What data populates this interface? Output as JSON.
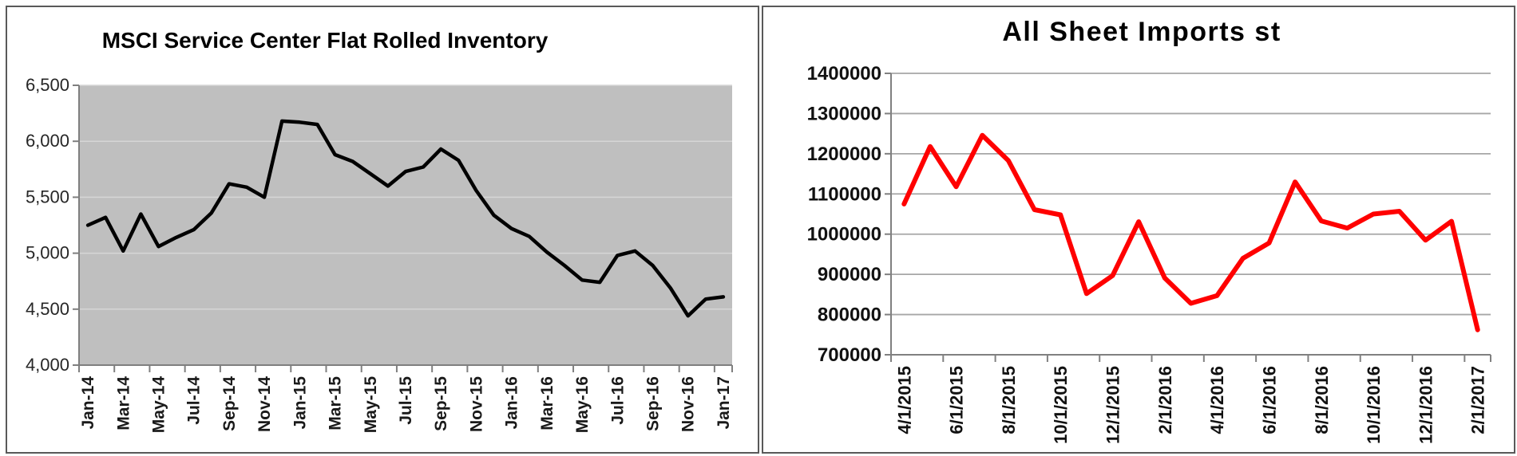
{
  "page": {
    "background": "#ffffff"
  },
  "chart_data": [
    {
      "type": "line",
      "title": "MSCI Service Center Flat Rolled Inventory",
      "legend": "none",
      "grid": "horizontal",
      "xlabel": "",
      "ylabel": "",
      "ylim": [
        4000,
        6500
      ],
      "y_step": 500,
      "y_tick_labels": [
        "6,500",
        "6,000",
        "5,500",
        "5,000",
        "4,500",
        "4,000"
      ],
      "x_tick_labels": [
        "Jan-14",
        "Mar-14",
        "May-14",
        "Jul-14",
        "Sep-14",
        "Nov-14",
        "Jan-15",
        "Mar-15",
        "May-15",
        "Jul-15",
        "Sep-15",
        "Nov-15",
        "Jan-16",
        "Mar-16",
        "May-16",
        "Jul-16",
        "Sep-16",
        "Nov-16",
        "Jan-17"
      ],
      "categories": [
        "Jan-14",
        "Feb-14",
        "Mar-14",
        "Apr-14",
        "May-14",
        "Jun-14",
        "Jul-14",
        "Aug-14",
        "Sep-14",
        "Oct-14",
        "Nov-14",
        "Dec-14",
        "Jan-15",
        "Feb-15",
        "Mar-15",
        "Apr-15",
        "May-15",
        "Jun-15",
        "Jul-15",
        "Aug-15",
        "Sep-15",
        "Oct-15",
        "Nov-15",
        "Dec-15",
        "Jan-16",
        "Feb-16",
        "Mar-16",
        "Apr-16",
        "May-16",
        "Jun-16",
        "Jul-16",
        "Aug-16",
        "Sep-16",
        "Oct-16",
        "Nov-16",
        "Dec-16",
        "Jan-17"
      ],
      "values": [
        5250,
        5320,
        5020,
        5350,
        5060,
        5140,
        5210,
        5360,
        5620,
        5590,
        5500,
        6180,
        6170,
        6150,
        5880,
        5820,
        5710,
        5600,
        5730,
        5770,
        5930,
        5830,
        5560,
        5340,
        5220,
        5150,
        5010,
        4890,
        4760,
        4740,
        4980,
        5020,
        4890,
        4690,
        4440,
        4590,
        4610
      ],
      "colors": {
        "line": "#000000",
        "plot_bg": "#bfbfbf",
        "grid": "#d6d6d6",
        "axis": "#7f7f7f",
        "tick": "#7f7f7f"
      }
    },
    {
      "type": "line",
      "title": "All Sheet Imports st",
      "legend": "none",
      "grid": "horizontal",
      "xlabel": "",
      "ylabel": "",
      "ylim": [
        700000,
        1400000
      ],
      "y_step": 100000,
      "y_tick_labels": [
        "1400000",
        "1300000",
        "1200000",
        "1100000",
        "1000000",
        "900000",
        "800000",
        "700000"
      ],
      "x_tick_labels": [
        "4/1/2015",
        "6/1/2015",
        "8/1/2015",
        "10/1/2015",
        "12/1/2015",
        "2/1/2016",
        "4/1/2016",
        "6/1/2016",
        "8/1/2016",
        "10/1/2016",
        "12/1/2016",
        "2/1/2017"
      ],
      "categories": [
        "4/1/2015",
        "5/1/2015",
        "6/1/2015",
        "7/1/2015",
        "8/1/2015",
        "9/1/2015",
        "10/1/2015",
        "11/1/2015",
        "12/1/2015",
        "1/1/2016",
        "2/1/2016",
        "3/1/2016",
        "4/1/2016",
        "5/1/2016",
        "6/1/2016",
        "7/1/2016",
        "8/1/2016",
        "9/1/2016",
        "10/1/2016",
        "11/1/2016",
        "12/1/2016",
        "1/1/2017",
        "2/1/2017"
      ],
      "values": [
        1075000,
        1218000,
        1118000,
        1246000,
        1183000,
        1061000,
        1048000,
        852000,
        897000,
        1031000,
        891000,
        828000,
        847000,
        940000,
        978000,
        1130000,
        1033000,
        1015000,
        1050000,
        1057000,
        985000,
        1032000,
        762000
      ],
      "colors": {
        "line": "#ff0000",
        "plot_bg": "#ffffff",
        "grid": "#a6a6a6",
        "axis": "#808080",
        "tick": "#808080"
      }
    }
  ]
}
